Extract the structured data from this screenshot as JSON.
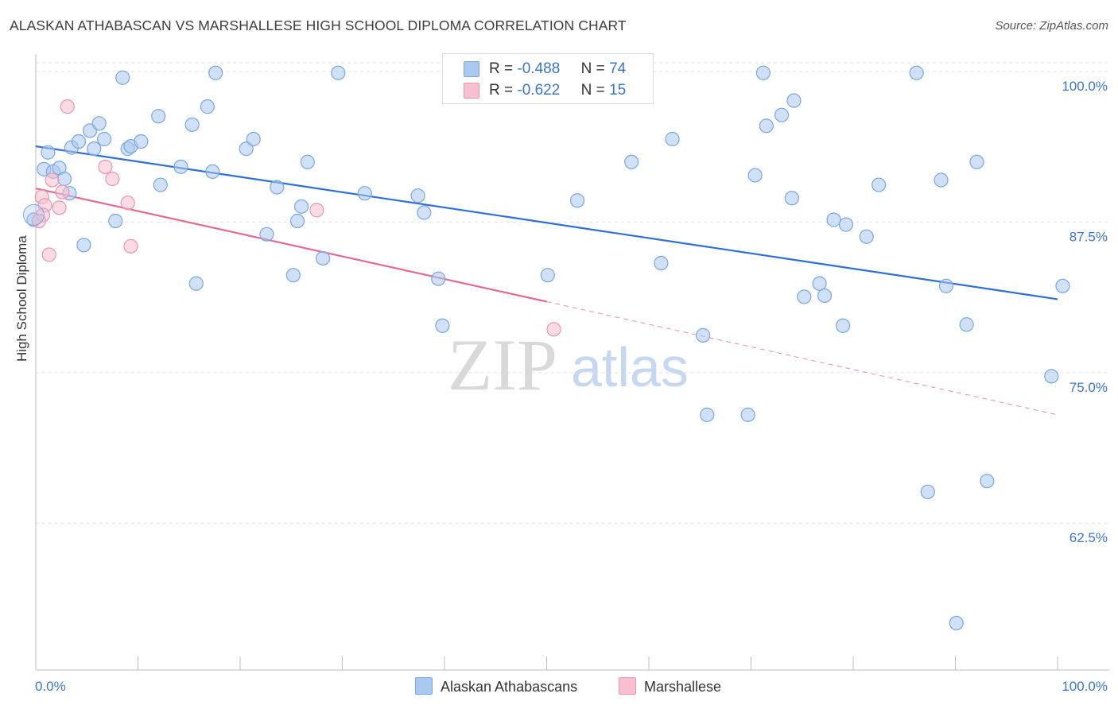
{
  "header": {
    "title": "ALASKAN ATHABASCAN VS MARSHALLESE HIGH SCHOOL DIPLOMA CORRELATION CHART",
    "source": "Source: ZipAtlas.com"
  },
  "watermark": {
    "zip": "ZIP",
    "atlas": "atlas"
  },
  "legend_top": [
    {
      "r_label": "R =",
      "r_value": "-0.488",
      "n_label": "N =",
      "n_value": "74",
      "color": "#aac8f0",
      "border": "#7aa6de"
    },
    {
      "r_label": "R =",
      "r_value": "-0.622",
      "n_label": "N =",
      "n_value": "15",
      "color": "#f7c0d0",
      "border": "#e796b0"
    }
  ],
  "legend_bottom": [
    {
      "label": "Alaskan Athabascans",
      "color": "#aac8f0",
      "border": "#7aa6de"
    },
    {
      "label": "Marshallese",
      "color": "#f7c0d0",
      "border": "#e796b0"
    }
  ],
  "chart_data": {
    "type": "scatter",
    "title": "ALASKAN ATHABASCAN VS MARSHALLESE HIGH SCHOOL DIPLOMA CORRELATION CHART",
    "xlabel": "",
    "ylabel": "High School Diploma",
    "xlim": [
      0,
      100
    ],
    "ylim": [
      50.3,
      101.2
    ],
    "x_tick_labels": [
      "0.0%",
      "100.0%"
    ],
    "y_ticks": [
      62.5,
      75.0,
      87.5,
      100.0
    ],
    "y_tick_labels": [
      "62.5%",
      "75.0%",
      "87.5%",
      "100.0%"
    ],
    "grid": true,
    "legend": "top-center",
    "series": [
      {
        "name": "Alaskan Athabascans",
        "color": "#aac8f0",
        "edge": "#7aa6de",
        "line_color": "#2f6fcf",
        "trend": {
          "x": [
            0,
            100
          ],
          "y": [
            93.8,
            81.1
          ],
          "dashed_x": []
        },
        "points": [
          [
            0.8,
            91.9
          ],
          [
            1.2,
            93.3
          ],
          [
            1.7,
            91.7
          ],
          [
            2.3,
            92.0
          ],
          [
            2.8,
            91.1
          ],
          [
            3.3,
            89.9
          ],
          [
            3.5,
            93.7
          ],
          [
            4.2,
            94.2
          ],
          [
            4.7,
            85.6
          ],
          [
            5.3,
            95.1
          ],
          [
            5.7,
            93.6
          ],
          [
            6.2,
            95.7
          ],
          [
            6.7,
            94.4
          ],
          [
            7.8,
            87.6
          ],
          [
            8.5,
            99.5
          ],
          [
            9.0,
            93.6
          ],
          [
            9.3,
            93.8
          ],
          [
            10.3,
            94.2
          ],
          [
            12.0,
            96.3
          ],
          [
            12.2,
            90.6
          ],
          [
            14.2,
            92.1
          ],
          [
            15.3,
            95.6
          ],
          [
            15.7,
            82.4
          ],
          [
            16.8,
            97.1
          ],
          [
            17.3,
            91.7
          ],
          [
            17.6,
            99.9
          ],
          [
            20.6,
            93.6
          ],
          [
            21.3,
            94.4
          ],
          [
            22.6,
            86.5
          ],
          [
            23.6,
            90.4
          ],
          [
            25.2,
            83.1
          ],
          [
            25.6,
            87.6
          ],
          [
            26.0,
            88.8
          ],
          [
            26.6,
            92.5
          ],
          [
            28.1,
            84.5
          ],
          [
            29.6,
            99.9
          ],
          [
            32.2,
            89.9
          ],
          [
            37.4,
            89.7
          ],
          [
            38.0,
            88.3
          ],
          [
            39.4,
            82.8
          ],
          [
            39.8,
            78.9
          ],
          [
            50.1,
            83.1
          ],
          [
            53.0,
            89.3
          ],
          [
            58.3,
            92.5
          ],
          [
            61.2,
            84.1
          ],
          [
            62.3,
            94.4
          ],
          [
            65.3,
            78.1
          ],
          [
            65.7,
            71.5
          ],
          [
            69.7,
            71.5
          ],
          [
            70.4,
            91.4
          ],
          [
            71.2,
            99.9
          ],
          [
            71.5,
            95.5
          ],
          [
            73.0,
            96.4
          ],
          [
            74.0,
            89.5
          ],
          [
            74.2,
            97.6
          ],
          [
            75.2,
            81.3
          ],
          [
            76.7,
            82.4
          ],
          [
            77.2,
            81.4
          ],
          [
            78.1,
            87.7
          ],
          [
            79.0,
            78.9
          ],
          [
            79.3,
            87.3
          ],
          [
            81.3,
            86.3
          ],
          [
            82.5,
            90.6
          ],
          [
            86.2,
            99.9
          ],
          [
            87.3,
            65.1
          ],
          [
            88.6,
            91.0
          ],
          [
            89.1,
            82.2
          ],
          [
            90.1,
            54.2
          ],
          [
            91.1,
            79.0
          ],
          [
            92.1,
            92.5
          ],
          [
            93.1,
            66.0
          ],
          [
            99.4,
            74.7
          ],
          [
            100.5,
            82.2
          ],
          [
            -0.2,
            87.7
          ]
        ]
      },
      {
        "name": "Marshallese",
        "color": "#f7c0d0",
        "edge": "#e796b0",
        "line_color": "#e06a94",
        "trend": {
          "x": [
            0,
            50
          ],
          "y": [
            90.3,
            80.9
          ],
          "dashed_x": [
            50,
            100
          ]
        },
        "points": [
          [
            0.6,
            89.6
          ],
          [
            0.9,
            88.9
          ],
          [
            1.3,
            84.8
          ],
          [
            1.6,
            91.0
          ],
          [
            2.3,
            88.7
          ],
          [
            2.6,
            90.0
          ],
          [
            3.1,
            97.1
          ],
          [
            6.8,
            92.1
          ],
          [
            7.5,
            91.1
          ],
          [
            9.0,
            89.1
          ],
          [
            9.3,
            85.5
          ],
          [
            27.5,
            88.5
          ],
          [
            50.7,
            78.6
          ],
          [
            0.7,
            88.1
          ],
          [
            0.3,
            87.6
          ]
        ]
      }
    ]
  }
}
